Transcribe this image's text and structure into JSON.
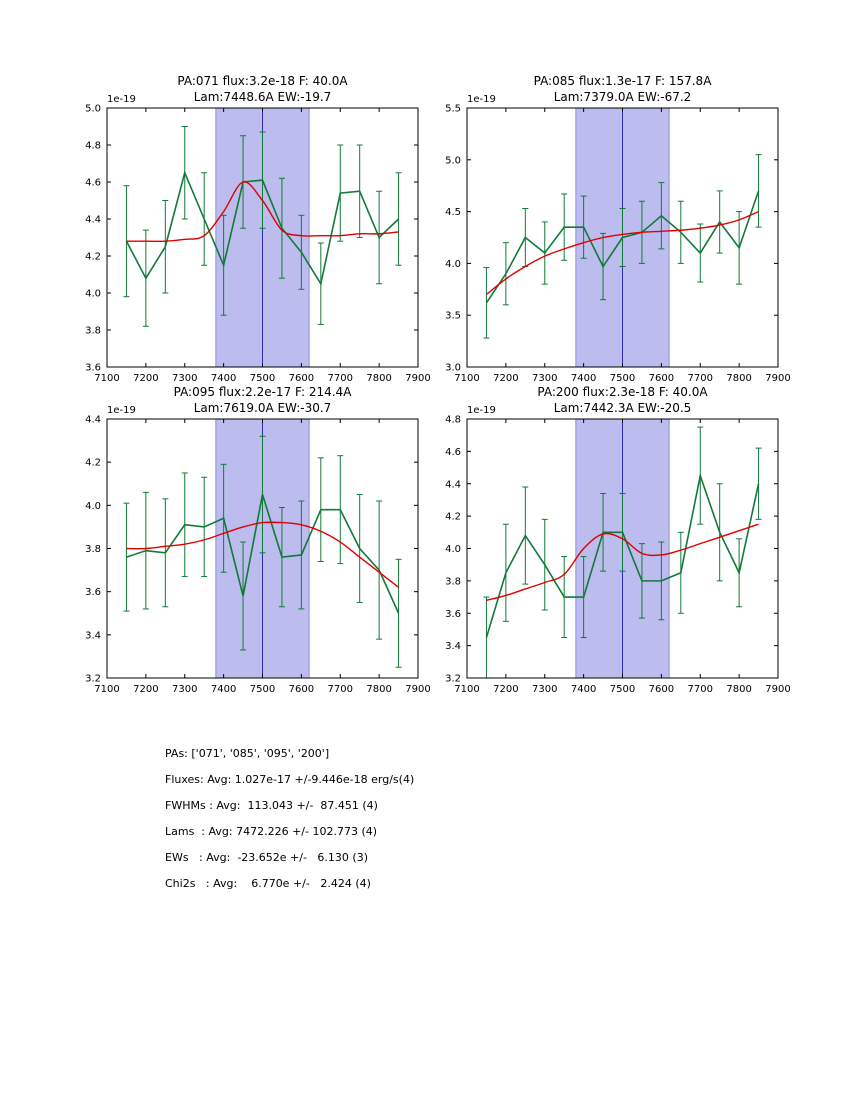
{
  "colors": {
    "data_line": "#117a38",
    "fit_line": "#e00000",
    "band_fill": "#bcbcee",
    "band_edge": "#8f8fdd",
    "vline": "#2f2faf",
    "axis": "#000000",
    "background": "#ffffff"
  },
  "chart_data": [
    {
      "type": "line",
      "title": "PA:071 flux:3.2e-18 F: 40.0A",
      "subtitle": "Lam:7448.6A EW:-19.7",
      "offset_label": "1e-19",
      "xlim": [
        7100,
        7900
      ],
      "ylim": [
        3.6,
        5.0
      ],
      "xticks": [
        7100,
        7200,
        7300,
        7400,
        7500,
        7600,
        7700,
        7800,
        7900
      ],
      "yticks": [
        3.6,
        3.8,
        4.0,
        4.2,
        4.4,
        4.6,
        4.8,
        5.0
      ],
      "band": [
        7380,
        7620
      ],
      "vline": 7500,
      "grid": false,
      "legend": "none",
      "x": [
        7150,
        7200,
        7250,
        7300,
        7350,
        7400,
        7450,
        7500,
        7550,
        7600,
        7650,
        7700,
        7750,
        7800,
        7850
      ],
      "series": [
        {
          "name": "spectrum",
          "values": [
            4.28,
            4.08,
            4.25,
            4.65,
            4.4,
            4.15,
            4.6,
            4.61,
            4.35,
            4.22,
            4.05,
            4.54,
            4.55,
            4.3,
            4.4
          ],
          "errors": [
            0.3,
            0.26,
            0.25,
            0.25,
            0.25,
            0.27,
            0.25,
            0.26,
            0.27,
            0.2,
            0.22,
            0.26,
            0.25,
            0.25,
            0.25
          ]
        },
        {
          "name": "fit",
          "values": [
            4.28,
            4.28,
            4.28,
            4.29,
            4.31,
            4.44,
            4.6,
            4.5,
            4.34,
            4.31,
            4.31,
            4.31,
            4.32,
            4.32,
            4.33
          ]
        }
      ]
    },
    {
      "type": "line",
      "title": "PA:085 flux:1.3e-17 F: 157.8A",
      "subtitle": "Lam:7379.0A EW:-67.2",
      "offset_label": "1e-19",
      "xlim": [
        7100,
        7900
      ],
      "ylim": [
        3.0,
        5.5
      ],
      "xticks": [
        7100,
        7200,
        7300,
        7400,
        7500,
        7600,
        7700,
        7800,
        7900
      ],
      "yticks": [
        3.0,
        3.5,
        4.0,
        4.5,
        5.0,
        5.5
      ],
      "band": [
        7380,
        7620
      ],
      "vline": 7500,
      "grid": false,
      "legend": "none",
      "x": [
        7150,
        7200,
        7250,
        7300,
        7350,
        7400,
        7450,
        7500,
        7550,
        7600,
        7650,
        7700,
        7750,
        7800,
        7850
      ],
      "series": [
        {
          "name": "spectrum",
          "values": [
            3.62,
            3.9,
            4.25,
            4.1,
            4.35,
            4.35,
            3.97,
            4.25,
            4.3,
            4.46,
            4.3,
            4.1,
            4.4,
            4.15,
            4.7
          ],
          "errors": [
            0.34,
            0.3,
            0.28,
            0.3,
            0.32,
            0.3,
            0.32,
            0.28,
            0.3,
            0.32,
            0.3,
            0.28,
            0.3,
            0.35,
            0.35
          ]
        },
        {
          "name": "fit",
          "values": [
            3.7,
            3.85,
            3.97,
            4.07,
            4.14,
            4.2,
            4.25,
            4.28,
            4.3,
            4.31,
            4.32,
            4.34,
            4.37,
            4.42,
            4.5
          ]
        }
      ]
    },
    {
      "type": "line",
      "title": "PA:095 flux:2.2e-17 F: 214.4A",
      "subtitle": "Lam:7619.0A EW:-30.7",
      "offset_label": "1e-19",
      "xlim": [
        7100,
        7900
      ],
      "ylim": [
        3.2,
        4.4
      ],
      "xticks": [
        7100,
        7200,
        7300,
        7400,
        7500,
        7600,
        7700,
        7800,
        7900
      ],
      "yticks": [
        3.2,
        3.4,
        3.6,
        3.8,
        4.0,
        4.2,
        4.4
      ],
      "band": [
        7380,
        7620
      ],
      "vline": 7500,
      "grid": false,
      "legend": "none",
      "x": [
        7150,
        7200,
        7250,
        7300,
        7350,
        7400,
        7450,
        7500,
        7550,
        7600,
        7650,
        7700,
        7750,
        7800,
        7850
      ],
      "series": [
        {
          "name": "spectrum",
          "values": [
            3.76,
            3.79,
            3.78,
            3.91,
            3.9,
            3.94,
            3.58,
            4.05,
            3.76,
            3.77,
            3.98,
            3.98,
            3.8,
            3.7,
            3.5
          ],
          "errors": [
            0.25,
            0.27,
            0.25,
            0.24,
            0.23,
            0.25,
            0.25,
            0.27,
            0.23,
            0.25,
            0.24,
            0.25,
            0.25,
            0.32,
            0.25
          ]
        },
        {
          "name": "fit",
          "values": [
            3.8,
            3.8,
            3.81,
            3.82,
            3.84,
            3.87,
            3.9,
            3.92,
            3.92,
            3.91,
            3.88,
            3.83,
            3.76,
            3.69,
            3.62
          ]
        }
      ]
    },
    {
      "type": "line",
      "title": "PA:200 flux:2.3e-18 F: 40.0A",
      "subtitle": "Lam:7442.3A EW:-20.5",
      "offset_label": "1e-19",
      "xlim": [
        7100,
        7900
      ],
      "ylim": [
        3.2,
        4.8
      ],
      "xticks": [
        7100,
        7200,
        7300,
        7400,
        7500,
        7600,
        7700,
        7800,
        7900
      ],
      "yticks": [
        3.2,
        3.4,
        3.6,
        3.8,
        4.0,
        4.2,
        4.4,
        4.6,
        4.8
      ],
      "band": [
        7380,
        7620
      ],
      "vline": 7500,
      "grid": false,
      "legend": "none",
      "x": [
        7150,
        7200,
        7250,
        7300,
        7350,
        7400,
        7450,
        7500,
        7550,
        7600,
        7650,
        7700,
        7750,
        7800,
        7850
      ],
      "series": [
        {
          "name": "spectrum",
          "values": [
            3.45,
            3.85,
            4.08,
            3.9,
            3.7,
            3.7,
            4.1,
            4.1,
            3.8,
            3.8,
            3.85,
            4.45,
            4.1,
            3.85,
            4.4
          ],
          "errors": [
            0.25,
            0.3,
            0.3,
            0.28,
            0.25,
            0.25,
            0.24,
            0.24,
            0.23,
            0.24,
            0.25,
            0.3,
            0.3,
            0.21,
            0.22
          ]
        },
        {
          "name": "fit",
          "values": [
            3.68,
            3.71,
            3.75,
            3.79,
            3.84,
            4.0,
            4.09,
            4.06,
            3.97,
            3.96,
            3.99,
            4.03,
            4.07,
            4.11,
            4.15
          ]
        }
      ]
    }
  ],
  "summary": {
    "lines": [
      "PAs: ['071', '085', '095', '200']",
      "Fluxes: Avg: 1.027e-17 +/-9.446e-18 erg/s(4)",
      "FWHMs : Avg:  113.043 +/-  87.451 (4)",
      "Lams  : Avg: 7472.226 +/- 102.773 (4)",
      "EWs   : Avg:  -23.652e +/-   6.130 (3)",
      "Chi2s   : Avg:    6.770e +/-   2.424 (4)"
    ]
  }
}
